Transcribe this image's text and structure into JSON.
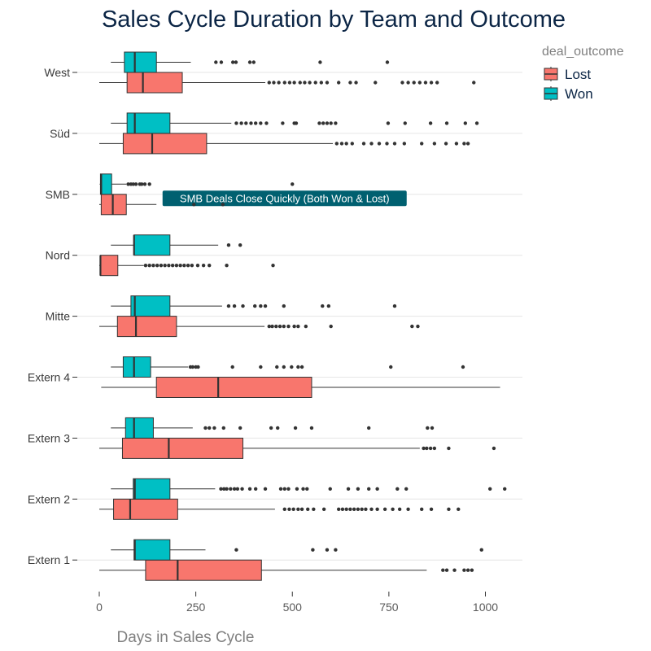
{
  "chart_data": {
    "type": "boxplot",
    "orientation": "horizontal",
    "title": "Sales Cycle Duration by Team and Outcome",
    "xlabel": "Days in Sales Cycle",
    "ylabel": "",
    "xlim": [
      -30,
      1090
    ],
    "x_ticks": [
      0,
      250,
      500,
      750,
      1000
    ],
    "legend": {
      "title": "deal_outcome",
      "placement": "top-right",
      "entries": [
        {
          "name": "Lost",
          "color": "#f8766d"
        },
        {
          "name": "Won",
          "color": "#00bfc4"
        }
      ]
    },
    "categories": [
      "West",
      "Süd",
      "SMB",
      "Nord",
      "Mitte",
      "Extern 4",
      "Extern 3",
      "Extern 2",
      "Extern 1"
    ],
    "series": [
      {
        "name": "Won",
        "color": "#00bfc4",
        "boxes": [
          {
            "team": "West",
            "whisker_low": 30,
            "q1": 65,
            "median": 92,
            "q3": 148,
            "whisker_high": 237,
            "outliers": [
              302,
              316,
              346,
              354,
              390,
              400,
              572,
              746
            ]
          },
          {
            "team": "Süd",
            "whisker_low": 30,
            "q1": 72,
            "median": 92,
            "q3": 183,
            "whisker_high": 342,
            "outliers": [
              355,
              368,
              380,
              393,
              405,
              418,
              433,
              475,
              505,
              510,
              570,
              580,
              590,
              600,
              612,
              748,
              792,
              858,
              900,
              948,
              978
            ]
          },
          {
            "team": "SMB",
            "whisker_low": 1,
            "q1": 3,
            "median": 5,
            "q3": 32,
            "whisker_high": 70,
            "outliers": [
              75,
              82,
              88,
              95,
              105,
              110,
              118,
              130,
              500
            ]
          },
          {
            "team": "Nord",
            "whisker_low": 30,
            "q1": 90,
            "median": 90,
            "q3": 183,
            "whisker_high": 308,
            "outliers": [
              335,
              365
            ]
          },
          {
            "team": "Mitte",
            "whisker_low": 30,
            "q1": 82,
            "median": 92,
            "q3": 183,
            "whisker_high": 318,
            "outliers": [
              335,
              350,
              372,
              403,
              418,
              430,
              478,
              578,
              594,
              765
            ]
          },
          {
            "team": "Extern 4",
            "whisker_low": 30,
            "q1": 62,
            "median": 90,
            "q3": 133,
            "whisker_high": 230,
            "outliers": [
              236,
              242,
              250,
              256,
              345,
              418,
              460,
              478,
              498,
              515,
              525,
              755,
              942
            ]
          },
          {
            "team": "Extern 3",
            "whisker_low": 30,
            "q1": 68,
            "median": 90,
            "q3": 140,
            "whisker_high": 242,
            "outliers": [
              275,
              285,
              298,
              322,
              365,
              445,
              462,
              508,
              550,
              698,
              850,
              862
            ]
          },
          {
            "team": "Extern 2",
            "whisker_low": 30,
            "q1": 88,
            "median": 92,
            "q3": 183,
            "whisker_high": 300,
            "outliers": [
              315,
              323,
              330,
              340,
              350,
              358,
              370,
              390,
              405,
              430,
              470,
              480,
              490,
              512,
              528,
              538,
              598,
              645,
              670,
              698,
              720,
              772,
              795,
              1012,
              1050
            ]
          },
          {
            "team": "Extern 1",
            "whisker_low": 30,
            "q1": 90,
            "median": 92,
            "q3": 183,
            "whisker_high": 275,
            "outliers": [
              355,
              553,
              590,
              612,
              990
            ]
          }
        ]
      },
      {
        "name": "Lost",
        "color": "#f8766d",
        "boxes": [
          {
            "team": "West",
            "whisker_low": 0,
            "q1": 72,
            "median": 113,
            "q3": 215,
            "whisker_high": 430,
            "outliers": [
              440,
              452,
              465,
              480,
              493,
              505,
              520,
              532,
              545,
              560,
              575,
              590,
              620,
              650,
              665,
              715,
              785,
              800,
              815,
              830,
              845,
              860,
              875,
              970
            ]
          },
          {
            "team": "Süd",
            "whisker_low": 0,
            "q1": 62,
            "median": 137,
            "q3": 278,
            "whisker_high": 605,
            "outliers": [
              615,
              628,
              640,
              655,
              685,
              705,
              725,
              745,
              765,
              790,
              835,
              868,
              898,
              925,
              945,
              955
            ]
          },
          {
            "team": "SMB",
            "whisker_low": 0,
            "q1": 5,
            "median": 35,
            "q3": 70,
            "whisker_high": 148,
            "outliers": [
              245,
              320
            ]
          },
          {
            "team": "Nord",
            "whisker_low": 0,
            "q1": 3,
            "median": 3,
            "q3": 48,
            "whisker_high": 115,
            "outliers": [
              120,
              130,
              140,
              150,
              160,
              170,
              180,
              190,
              200,
              210,
              220,
              230,
              240,
              255,
              270,
              285,
              330,
              450
            ]
          },
          {
            "team": "Mitte",
            "whisker_low": 0,
            "q1": 47,
            "median": 95,
            "q3": 200,
            "whisker_high": 428,
            "outliers": [
              440,
              448,
              458,
              468,
              478,
              490,
              505,
              515,
              535,
              600,
              810,
              825
            ]
          },
          {
            "team": "Extern 4",
            "whisker_low": 5,
            "q1": 148,
            "median": 308,
            "q3": 550,
            "whisker_high": 1038,
            "outliers": []
          },
          {
            "team": "Extern 3",
            "whisker_low": 0,
            "q1": 60,
            "median": 180,
            "q3": 372,
            "whisker_high": 830,
            "outliers": [
              840,
              848,
              858,
              868,
              905,
              1022
            ]
          },
          {
            "team": "Extern 2",
            "whisker_low": 0,
            "q1": 37,
            "median": 80,
            "q3": 203,
            "whisker_high": 455,
            "outliers": [
              480,
              492,
              503,
              515,
              525,
              540,
              555,
              582,
              620,
              630,
              640,
              650,
              660,
              670,
              680,
              690,
              705,
              720,
              740,
              760,
              778,
              800,
              835,
              860,
              905,
              930
            ]
          },
          {
            "team": "Extern 1",
            "whisker_low": 0,
            "q1": 120,
            "median": 203,
            "q3": 420,
            "whisker_high": 848,
            "outliers": [
              890,
              900,
              920,
              945,
              955,
              965
            ]
          }
        ]
      }
    ],
    "annotations": [
      {
        "text": "SMB Deals Close Quickly (Both Won & Lost)",
        "team": "SMB",
        "x": 480,
        "fill": "#006070"
      }
    ]
  }
}
